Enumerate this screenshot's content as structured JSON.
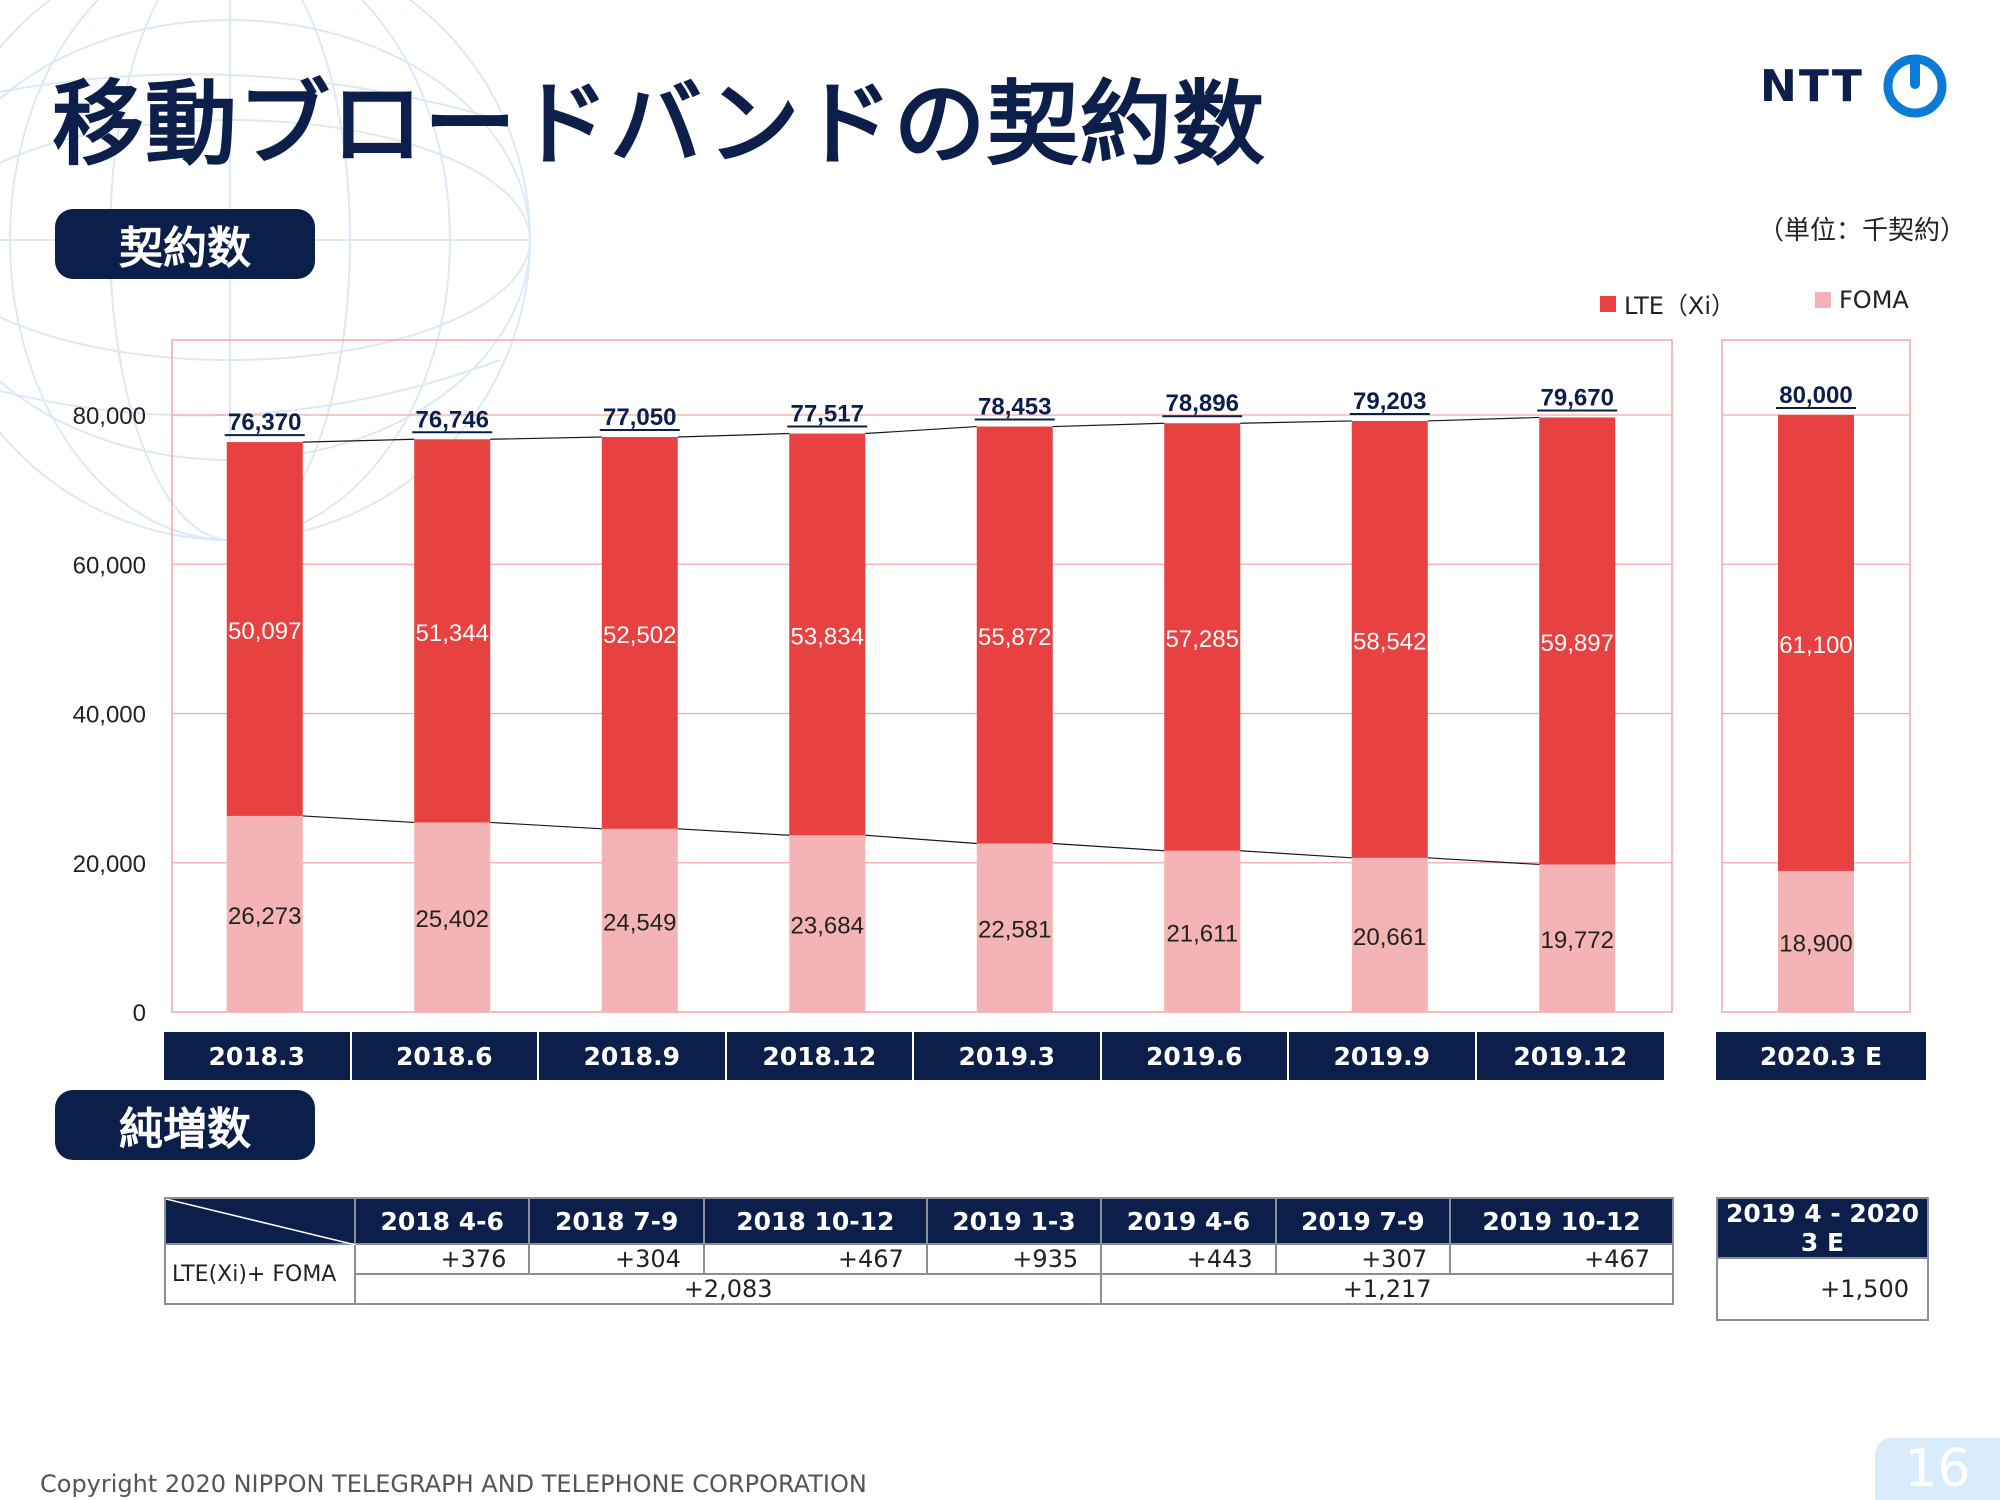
{
  "header": {
    "title": "移動ブロードバンドの契約数",
    "logo_text": "NTT"
  },
  "section_contracts": "契約数",
  "section_net_additions": "純増数",
  "unit_label": "（単位：千契約）",
  "legend": [
    {
      "name": "LTE（Xi）",
      "color": "#e84142"
    },
    {
      "name": "FOMA",
      "color": "#f4b3b4"
    }
  ],
  "chart_data": {
    "type": "bar",
    "stacked": true,
    "categories": [
      "2018.3",
      "2018.6",
      "2018.9",
      "2018.12",
      "2019.3",
      "2019.6",
      "2019.9",
      "2019.12"
    ],
    "forecast_category": "2020.3 E",
    "series": [
      {
        "name": "FOMA",
        "color": "#f4b3b4",
        "values": [
          26273,
          25402,
          24549,
          23684,
          22581,
          21611,
          20661,
          19772
        ],
        "labels": [
          "26,273",
          "25,402",
          "24,549",
          "23,684",
          "22,581",
          "21,611",
          "20,661",
          "19,772"
        ],
        "forecast_value": 18900,
        "forecast_label": "18,900"
      },
      {
        "name": "LTE（Xi）",
        "color": "#e84142",
        "values": [
          50097,
          51344,
          52502,
          53834,
          55872,
          57285,
          58542,
          59897
        ],
        "labels": [
          "50,097",
          "51,344",
          "52,502",
          "53,834",
          "55,872",
          "57,285",
          "58,542",
          "59,897"
        ],
        "forecast_value": 61100,
        "forecast_label": "61,100"
      }
    ],
    "totals": [
      76370,
      76746,
      77050,
      77517,
      78453,
      78896,
      79203,
      79670
    ],
    "total_labels": [
      "76,370",
      "76,746",
      "77,050",
      "77,517",
      "78,453",
      "78,896",
      "79,203",
      "79,670"
    ],
    "forecast_total": 80000,
    "forecast_total_label": "80,000",
    "ylim": [
      0,
      80000
    ],
    "yticks": [
      0,
      20000,
      40000,
      60000,
      80000
    ],
    "ytick_labels": [
      "0",
      "20,000",
      "40,000",
      "60,000",
      "80,000"
    ],
    "grid": true,
    "legend_position": "top-right"
  },
  "net_additions_table": {
    "headers": [
      "2018 4-6",
      "2018 7-9",
      "2018 10-12",
      "2019 1-3",
      "2019 4-6",
      "2019 7-9",
      "2019 10-12"
    ],
    "forecast_header": "2019 4 - 2020 3 E",
    "row_label": "LTE(Xi)+ FOMA",
    "values": [
      "+376",
      "+304",
      "+467",
      "+935",
      "+443",
      "+307",
      "+467"
    ],
    "subtotals": [
      "+2,083",
      "+1,217"
    ],
    "forecast_value": "+1,500"
  },
  "footer": {
    "copyright": "Copyright 2020 NIPPON TELEGRAPH AND TELEPHONE CORPORATION",
    "page_number": "16"
  }
}
